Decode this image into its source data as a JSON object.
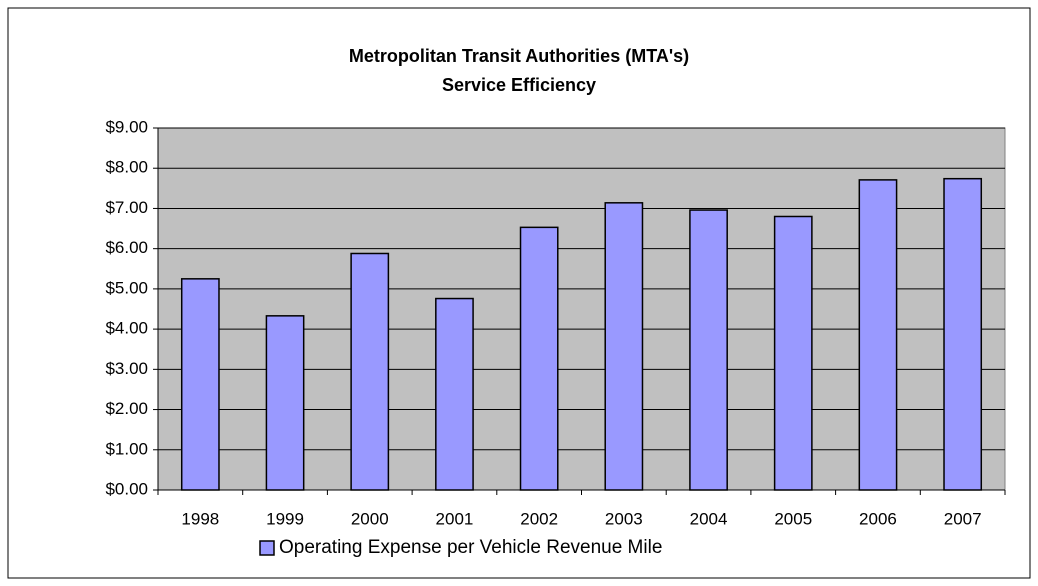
{
  "chart_data": {
    "type": "bar",
    "title": [
      "Metropolitan Transit Authorities (MTA's)",
      "Service Efficiency"
    ],
    "categories": [
      "1998",
      "1999",
      "2000",
      "2001",
      "2002",
      "2003",
      "2004",
      "2005",
      "2006",
      "2007"
    ],
    "series": [
      {
        "name": "Operating Expense per Vehicle Revenue Mile",
        "color": "#9999ff",
        "values": [
          5.25,
          4.33,
          5.88,
          4.76,
          6.53,
          7.14,
          6.96,
          6.8,
          7.71,
          7.74
        ]
      }
    ],
    "ylim": [
      0,
      9
    ],
    "yticks": [
      {
        "value": 0,
        "label": "$0.00"
      },
      {
        "value": 1,
        "label": "$1.00"
      },
      {
        "value": 2,
        "label": "$2.00"
      },
      {
        "value": 3,
        "label": "$3.00"
      },
      {
        "value": 4,
        "label": "$4.00"
      },
      {
        "value": 5,
        "label": "$5.00"
      },
      {
        "value": 6,
        "label": "$6.00"
      },
      {
        "value": 7,
        "label": "$7.00"
      },
      {
        "value": 8,
        "label": "$8.00"
      },
      {
        "value": 9,
        "label": "$9.00"
      }
    ],
    "grid": true,
    "legend": "bottom"
  }
}
